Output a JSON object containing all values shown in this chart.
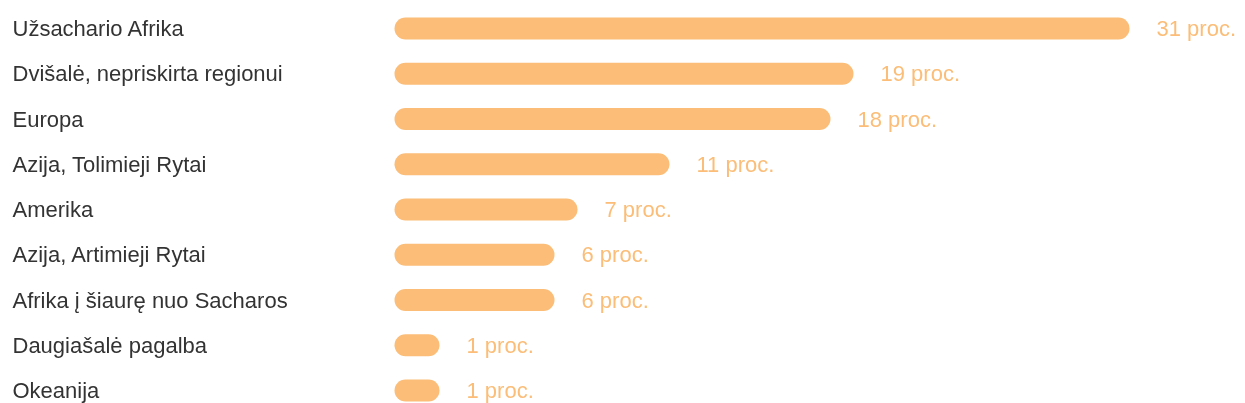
{
  "chart_data": {
    "type": "bar",
    "orientation": "horizontal",
    "tick_labels": "y",
    "categories": [
      "Užsachario Afrika",
      "Dvišalė, nepriskirta regionui",
      "Europa",
      "Azija, Tolimieji Rytai",
      "Amerika",
      "Azija, Artimieji Rytai",
      "Afrika į šiaurę nuo Sacharos",
      "Daugiašalė pagalba",
      "Okeanija"
    ],
    "values": [
      31,
      19,
      18,
      11,
      7,
      6,
      6,
      1,
      1
    ],
    "value_labels": [
      "31 proc.",
      "19 proc.",
      "18 proc.",
      "11 proc.",
      "7 proc.",
      "6 proc.",
      "6 proc.",
      "1 proc.",
      "1 proc."
    ],
    "color": "#fbbd77"
  }
}
